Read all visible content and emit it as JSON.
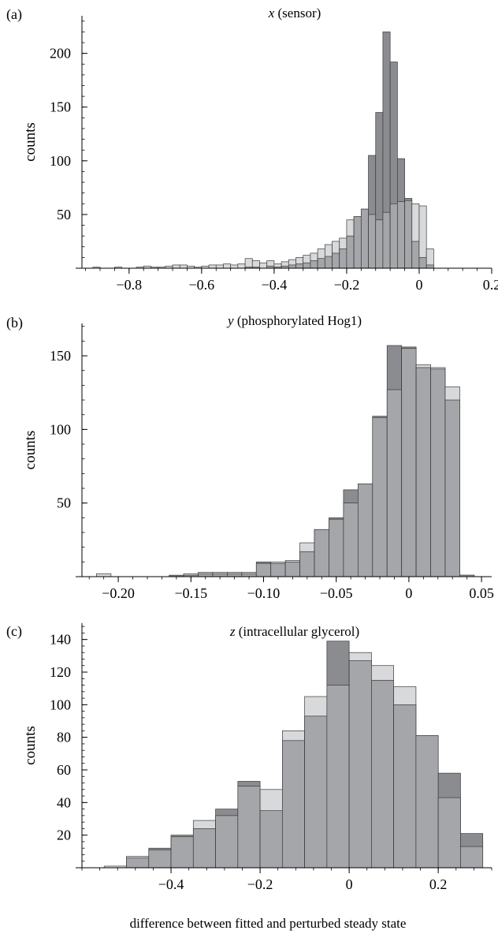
{
  "figure": {
    "xlabel": "difference between fitted and perturbed steady state"
  },
  "colors": {
    "light": "#d8d9db",
    "dark": "#8b8c8f",
    "overlap": "#a5a6a9"
  },
  "chart_data": [
    {
      "type": "bar",
      "panel_label": "(a)",
      "title_var": "x",
      "title_rest": " (sensor)",
      "ylabel": "counts",
      "xlim": [
        -0.93,
        0.2
      ],
      "ylim": [
        0,
        235
      ],
      "x_ticks": [
        -0.8,
        -0.6,
        -0.4,
        -0.2,
        0,
        0.2
      ],
      "x_tick_labels": [
        "−0.8",
        "−0.6",
        "−0.4",
        "−0.2",
        "0",
        "0.2"
      ],
      "y_ticks": [
        50,
        100,
        150,
        200
      ],
      "y_tick_labels": [
        "50",
        "100",
        "150",
        "200"
      ],
      "bin_start": -0.9,
      "bin_width": 0.02,
      "series": [
        {
          "role": "light",
          "values": [
            1,
            0,
            0,
            1,
            0,
            0,
            1,
            2,
            1,
            1,
            2,
            3,
            3,
            2,
            1,
            2,
            3,
            3,
            4,
            3,
            4,
            9,
            7,
            5,
            7,
            4,
            6,
            8,
            10,
            12,
            14,
            18,
            22,
            25,
            28,
            45,
            48,
            55,
            50,
            45,
            52,
            60,
            62,
            63,
            60,
            58,
            18
          ]
        },
        {
          "role": "dark",
          "values": [
            0,
            0,
            0,
            0,
            0,
            0,
            0,
            0,
            0,
            0,
            0,
            0,
            0,
            0,
            0,
            0,
            0,
            0,
            0,
            0,
            0,
            1,
            1,
            0,
            2,
            1,
            2,
            3,
            4,
            5,
            7,
            9,
            11,
            14,
            18,
            30,
            48,
            55,
            105,
            145,
            220,
            192,
            102,
            65,
            25,
            10,
            3
          ]
        }
      ]
    },
    {
      "type": "bar",
      "panel_label": "(b)",
      "title_var": "y",
      "title_rest": " (phosphorylated Hog1)",
      "ylabel": "counts",
      "xlim": [
        -0.225,
        0.057
      ],
      "ylim": [
        0,
        172
      ],
      "x_ticks": [
        -0.2,
        -0.15,
        -0.1,
        -0.05,
        0,
        0.05
      ],
      "x_tick_labels": [
        "−0.20",
        "−0.15",
        "−0.10",
        "−0.05",
        "0",
        "0.05"
      ],
      "y_ticks": [
        50,
        100,
        150
      ],
      "y_tick_labels": [
        "50",
        "100",
        "150"
      ],
      "bin_start": -0.215,
      "bin_width": 0.01,
      "series": [
        {
          "role": "light",
          "values": [
            2,
            0,
            0,
            0,
            0,
            0,
            2,
            3,
            3,
            3,
            3,
            9,
            10,
            11,
            23,
            32,
            39,
            50,
            63,
            108,
            127,
            155,
            144,
            142,
            129,
            1
          ]
        },
        {
          "role": "dark",
          "values": [
            0,
            0,
            0,
            0,
            0,
            1,
            1,
            2,
            2,
            2,
            2,
            10,
            9,
            10,
            17,
            32,
            40,
            59,
            63,
            109,
            157,
            156,
            142,
            141,
            120,
            1
          ]
        }
      ]
    },
    {
      "type": "bar",
      "panel_label": "(c)",
      "title_var": "z",
      "title_rest": " (intracellular glycerol)",
      "ylabel": "counts",
      "xlim": [
        -0.6,
        0.32
      ],
      "ylim": [
        0,
        150
      ],
      "x_ticks": [
        -0.4,
        -0.2,
        0,
        0.2
      ],
      "x_tick_labels": [
        "−0.4",
        "−0.2",
        "0",
        "0.2"
      ],
      "y_ticks": [
        20,
        40,
        60,
        80,
        100,
        120,
        140
      ],
      "y_tick_labels": [
        "20",
        "40",
        "60",
        "80",
        "100",
        "120",
        "140"
      ],
      "bin_start": -0.6,
      "bin_width": 0.05,
      "series": [
        {
          "role": "light",
          "values": [
            0,
            1,
            7,
            11,
            19,
            29,
            32,
            50,
            48,
            84,
            105,
            112,
            132,
            124,
            111,
            81,
            43,
            13
          ]
        },
        {
          "role": "dark",
          "values": [
            0,
            0,
            6,
            12,
            20,
            24,
            36,
            53,
            35,
            78,
            93,
            139,
            127,
            115,
            100,
            81,
            58,
            21
          ]
        }
      ]
    }
  ]
}
